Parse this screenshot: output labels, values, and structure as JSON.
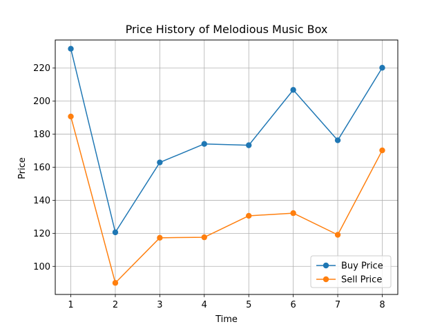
{
  "chart_data": {
    "type": "line",
    "title": "Price History of Melodious Music Box",
    "xlabel": "Time",
    "ylabel": "Price",
    "x": [
      1,
      2,
      3,
      4,
      5,
      6,
      7,
      8
    ],
    "xlim": [
      0.65,
      8.35
    ],
    "ylim": [
      83,
      237
    ],
    "xticks": [
      1,
      2,
      3,
      4,
      5,
      6,
      7,
      8
    ],
    "yticks": [
      100,
      120,
      140,
      160,
      180,
      200,
      220
    ],
    "grid": true,
    "legend_position": "lower-right",
    "series": [
      {
        "name": "Buy Price",
        "color": "#1f77b4",
        "marker": "circle",
        "values": [
          231.7,
          120.6,
          162.9,
          174.1,
          173.3,
          206.8,
          176.3,
          220.2
        ]
      },
      {
        "name": "Sell Price",
        "color": "#ff7f0e",
        "marker": "circle",
        "values": [
          190.7,
          90.0,
          117.3,
          117.6,
          130.6,
          132.2,
          119.1,
          170.2
        ]
      }
    ]
  }
}
